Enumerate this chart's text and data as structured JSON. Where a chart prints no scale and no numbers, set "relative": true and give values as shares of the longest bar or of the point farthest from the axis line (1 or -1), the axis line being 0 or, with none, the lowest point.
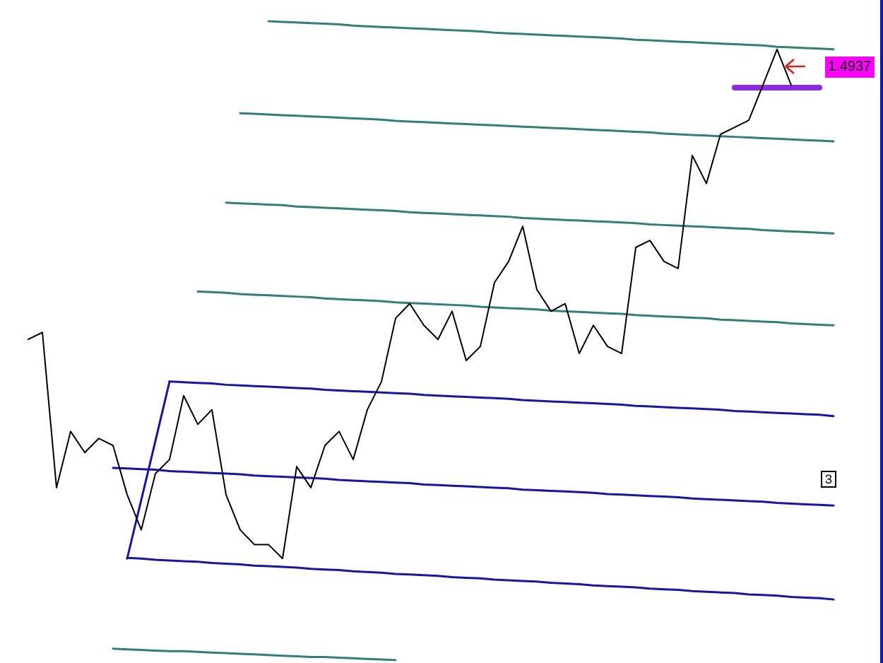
{
  "chart_data": {
    "type": "line",
    "relative": true,
    "grid": false,
    "marker": "none",
    "line_style": "solid",
    "tick_labels": false,
    "categories": [
      null,
      null,
      null,
      null,
      null,
      null,
      null,
      null,
      null,
      null,
      null,
      null,
      null,
      null,
      null,
      null,
      null,
      null,
      null,
      null,
      null,
      null,
      null,
      null,
      null,
      null,
      null,
      null,
      null,
      null,
      null,
      null,
      null,
      null,
      null,
      null,
      null,
      null,
      null,
      null,
      null,
      null,
      null,
      null,
      null,
      null,
      null,
      null,
      null,
      null,
      null,
      null,
      null,
      null,
      null,
      null,
      null,
      null
    ],
    "annotations": [
      "1.4937",
      "3"
    ],
    "series": [
      {
        "color": "#000000",
        "values": [
          0.502,
          0.513,
          0.27,
          0.358,
          0.325,
          0.347,
          0.336,
          0.259,
          0.204,
          0.292,
          0.314,
          0.414,
          0.369,
          0.392,
          0.259,
          0.204,
          0.181,
          0.181,
          0.159,
          0.303,
          0.27,
          0.336,
          0.358,
          0.314,
          0.392,
          0.436,
          0.535,
          0.558,
          0.524,
          0.502,
          0.546,
          0.469,
          0.491,
          0.591,
          0.624,
          0.679,
          0.58,
          0.546,
          0.558,
          0.48,
          0.524,
          0.491,
          0.48,
          0.646,
          0.657,
          0.624,
          0.613,
          0.79,
          0.746,
          0.823,
          0.834,
          0.845,
          0.9,
          0.956,
          0.9,
          null,
          null,
          null
        ]
      },
      {
        "color": "#2f7f7a",
        "values": [
          null,
          null,
          null,
          null,
          null,
          null,
          null,
          null,
          null,
          null,
          null,
          null,
          null,
          null,
          null,
          null,
          null,
          1.0,
          0.999,
          0.998,
          0.997,
          0.996,
          0.995,
          0.993,
          0.992,
          0.991,
          0.99,
          0.989,
          0.988,
          0.987,
          0.986,
          0.985,
          0.984,
          0.982,
          0.981,
          0.98,
          0.979,
          0.978,
          0.977,
          0.976,
          0.975,
          0.974,
          0.973,
          0.971,
          0.97,
          0.969,
          0.968,
          0.967,
          0.966,
          0.965,
          0.964,
          0.963,
          0.962,
          0.96,
          0.959,
          0.958,
          0.957,
          0.956
        ]
      },
      {
        "color": "#2f7f7a",
        "values": [
          null,
          null,
          null,
          null,
          null,
          null,
          null,
          null,
          null,
          null,
          null,
          null,
          null,
          null,
          null,
          0.856,
          0.855,
          0.854,
          0.853,
          0.852,
          0.851,
          0.85,
          0.849,
          0.848,
          0.847,
          0.846,
          0.844,
          0.843,
          0.842,
          0.841,
          0.84,
          0.839,
          0.838,
          0.837,
          0.836,
          0.835,
          0.834,
          0.833,
          0.832,
          0.831,
          0.83,
          0.829,
          0.828,
          0.827,
          0.826,
          0.824,
          0.823,
          0.822,
          0.821,
          0.82,
          0.819,
          0.818,
          0.817,
          0.816,
          0.815,
          0.814,
          0.813,
          0.812
        ]
      },
      {
        "color": "#2f7f7a",
        "values": [
          null,
          null,
          null,
          null,
          null,
          null,
          null,
          null,
          null,
          null,
          null,
          null,
          null,
          null,
          0.716,
          0.715,
          0.714,
          0.713,
          0.712,
          0.71,
          0.709,
          0.708,
          0.707,
          0.706,
          0.705,
          0.704,
          0.703,
          0.701,
          0.7,
          0.699,
          0.698,
          0.697,
          0.696,
          0.695,
          0.694,
          0.692,
          0.691,
          0.69,
          0.689,
          0.688,
          0.687,
          0.686,
          0.685,
          0.684,
          0.682,
          0.681,
          0.68,
          0.679,
          0.678,
          0.677,
          0.676,
          0.675,
          0.673,
          0.672,
          0.671,
          0.67,
          0.669,
          0.668
        ]
      },
      {
        "color": "#2f7f7a",
        "values": [
          null,
          null,
          null,
          null,
          null,
          null,
          null,
          null,
          null,
          null,
          null,
          null,
          0.577,
          0.576,
          0.575,
          0.573,
          0.572,
          0.571,
          0.57,
          0.569,
          0.568,
          0.566,
          0.565,
          0.564,
          0.563,
          0.562,
          0.56,
          0.559,
          0.558,
          0.557,
          0.556,
          0.555,
          0.553,
          0.552,
          0.551,
          0.55,
          0.549,
          0.547,
          0.546,
          0.545,
          0.544,
          0.543,
          0.542,
          0.54,
          0.539,
          0.538,
          0.537,
          0.536,
          0.535,
          0.533,
          0.532,
          0.531,
          0.53,
          0.529,
          0.527,
          0.526,
          0.525,
          0.524
        ]
      },
      {
        "color": "#1414b4",
        "values": [
          null,
          null,
          null,
          null,
          null,
          null,
          null,
          null,
          null,
          null,
          0.436,
          0.435,
          0.434,
          0.433,
          0.431,
          0.43,
          0.429,
          0.428,
          0.427,
          0.426,
          0.425,
          0.423,
          0.422,
          0.421,
          0.42,
          0.419,
          0.418,
          0.417,
          0.415,
          0.414,
          0.413,
          0.412,
          0.411,
          0.41,
          0.409,
          0.407,
          0.406,
          0.405,
          0.404,
          0.403,
          0.402,
          0.401,
          0.4,
          0.398,
          0.397,
          0.396,
          0.395,
          0.394,
          0.393,
          0.392,
          0.39,
          0.389,
          0.388,
          0.387,
          0.386,
          0.385,
          0.384,
          0.382
        ]
      },
      {
        "color": "#1414b4",
        "values": [
          null,
          null,
          null,
          null,
          null,
          null,
          null,
          0.159,
          0.251,
          0.343,
          0.436,
          null,
          null,
          null,
          null,
          null,
          null,
          null,
          null,
          null,
          null,
          null,
          null,
          null,
          null,
          null,
          null,
          null,
          null,
          null,
          null,
          null,
          null,
          null,
          null,
          null,
          null,
          null,
          null,
          null,
          null,
          null,
          null,
          null,
          null,
          null,
          null,
          null,
          null,
          null,
          null,
          null,
          null,
          null,
          null,
          null,
          null,
          null
        ]
      },
      {
        "color": "#1414b4",
        "values": [
          null,
          null,
          null,
          null,
          null,
          null,
          0.301,
          0.3,
          0.299,
          0.298,
          0.296,
          0.295,
          0.294,
          0.293,
          0.292,
          0.291,
          0.289,
          0.288,
          0.287,
          0.286,
          0.285,
          0.284,
          0.282,
          0.281,
          0.28,
          0.279,
          0.278,
          0.277,
          0.275,
          0.274,
          0.273,
          0.272,
          0.271,
          0.27,
          0.269,
          0.267,
          0.266,
          0.265,
          0.264,
          0.263,
          0.262,
          0.26,
          0.259,
          0.258,
          0.257,
          0.256,
          0.255,
          0.253,
          0.252,
          0.251,
          0.25,
          0.249,
          0.248,
          0.246,
          0.245,
          0.244,
          0.243,
          0.242
        ]
      },
      {
        "color": "#1414b4",
        "values": [
          null,
          null,
          null,
          null,
          null,
          null,
          null,
          0.16,
          0.159,
          0.157,
          0.156,
          0.155,
          0.154,
          0.152,
          0.151,
          0.15,
          0.148,
          0.147,
          0.146,
          0.145,
          0.143,
          0.142,
          0.141,
          0.139,
          0.138,
          0.137,
          0.135,
          0.134,
          0.133,
          0.132,
          0.13,
          0.129,
          0.128,
          0.126,
          0.125,
          0.124,
          0.123,
          0.121,
          0.12,
          0.119,
          0.117,
          0.116,
          0.115,
          0.114,
          0.112,
          0.111,
          0.11,
          0.108,
          0.107,
          0.106,
          0.105,
          0.103,
          0.102,
          0.101,
          0.099,
          0.098,
          0.097,
          0.095
        ]
      },
      {
        "color": "#2f7f7a",
        "values": [
          null,
          null,
          null,
          null,
          null,
          null,
          0.018,
          0.017,
          0.016,
          0.015,
          0.014,
          0.014,
          0.013,
          0.012,
          0.011,
          0.01,
          0.009,
          0.008,
          0.007,
          0.006,
          0.005,
          0.005,
          0.004,
          0.003,
          0.002,
          0.001,
          0.0,
          null,
          null,
          null,
          null,
          null,
          null,
          null,
          null,
          null,
          null,
          null,
          null,
          null,
          null,
          null,
          null,
          null,
          null,
          null,
          null,
          null,
          null,
          null,
          null,
          null,
          null,
          null,
          null,
          null,
          null,
          null
        ]
      },
      {
        "color": "#8a2be2",
        "values": [
          null,
          null,
          null,
          null,
          null,
          null,
          null,
          null,
          null,
          null,
          null,
          null,
          null,
          null,
          null,
          null,
          null,
          null,
          null,
          null,
          null,
          null,
          null,
          null,
          null,
          null,
          null,
          null,
          null,
          null,
          null,
          null,
          null,
          null,
          null,
          null,
          null,
          null,
          null,
          null,
          null,
          null,
          null,
          null,
          null,
          null,
          null,
          null,
          null,
          null,
          0.896,
          0.896,
          0.896,
          0.896,
          0.896,
          0.896,
          0.896,
          null
        ]
      }
    ]
  }
}
